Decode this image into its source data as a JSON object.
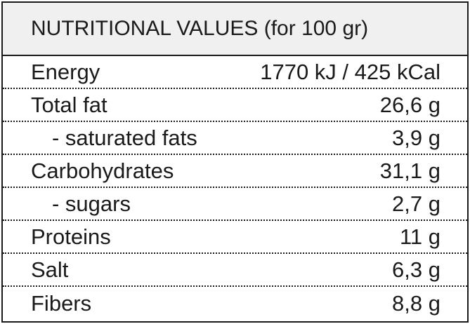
{
  "table": {
    "title": "NUTRITIONAL VALUES (for 100 gr)",
    "rows": [
      {
        "name": "Energy",
        "value": "1770 kJ / 425 kCal",
        "indent": false
      },
      {
        "name": "Total fat",
        "value": "26,6 g",
        "indent": false
      },
      {
        "name": "- saturated fats",
        "value": "3,9 g",
        "indent": true
      },
      {
        "name": "Carbohydrates",
        "value": "31,1 g",
        "indent": false
      },
      {
        "name": "- sugars",
        "value": "2,7 g",
        "indent": true
      },
      {
        "name": "Proteins",
        "value": "11 g",
        "indent": false
      },
      {
        "name": "Salt",
        "value": "6,3 g",
        "indent": false
      },
      {
        "name": "Fibers",
        "value": "8,8 g",
        "indent": false
      }
    ]
  },
  "colors": {
    "header_background": "#f0f0f0",
    "text": "#1a1a1a",
    "border": "#1a1a1a"
  }
}
